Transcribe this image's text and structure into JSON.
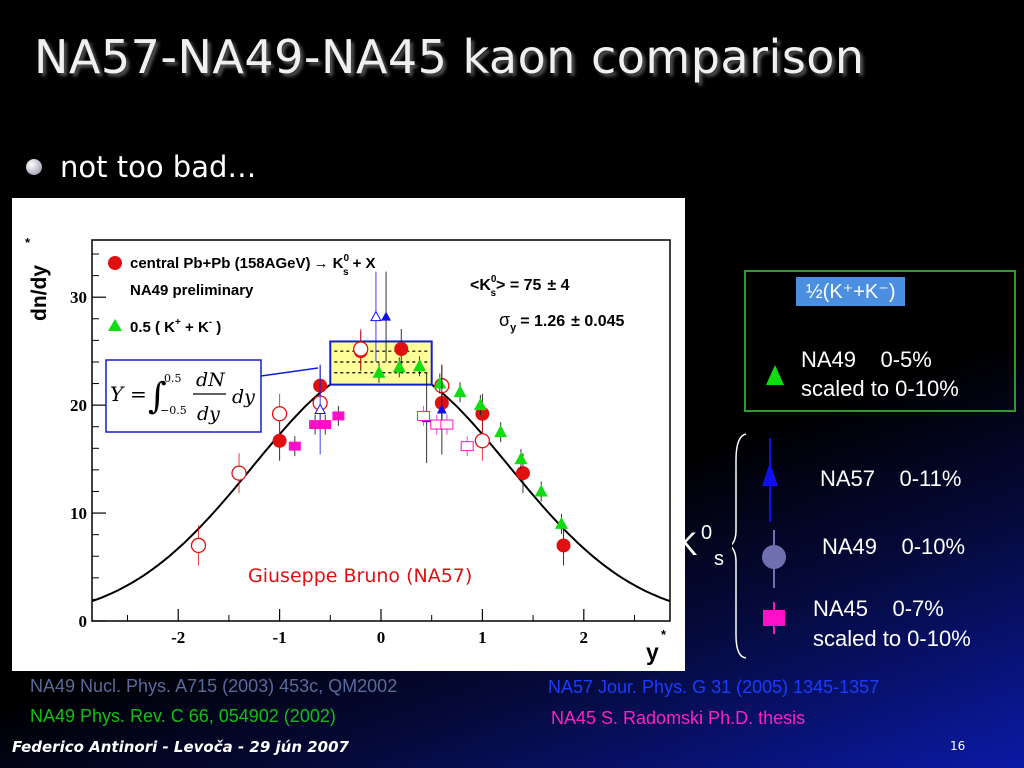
{
  "slide": {
    "title": "NA57-NA49-NA45 kaon comparison",
    "bullet": "not too bad…",
    "footer_left": "Federico Antinori - Levoča - 29 jún 2007",
    "page_number": "16"
  },
  "chart_data": {
    "type": "scatter",
    "xlabel": "y",
    "xlabel_sup": "*",
    "ylabel": "dn/dy",
    "ylabel_sup": "*",
    "xlim": [
      -2.85,
      2.85
    ],
    "ylim": [
      0,
      35.3
    ],
    "xticks": [
      -2,
      -1,
      0,
      1,
      2
    ],
    "yticks": [
      0,
      10,
      20,
      30
    ],
    "inner_legend": {
      "line1": "central Pb+Pb (158AGeV)",
      "line1_reaction": "→ K",
      "line1_super": "0",
      "line1_sub": "s",
      "line1_tail": "+ X",
      "line2": "NA49 preliminary",
      "line3": "0.5 ( K",
      "line3_sup1": "+",
      "line3_mid": " + K",
      "line3_sup2": "-",
      "line3_tail": " )"
    },
    "fit_stats": {
      "mean_label": "<K",
      "mean_sup": "0",
      "mean_sub": "s",
      "mean_tail": "> = 75",
      "mean_pm": "± 4",
      "sigma_label": "σ",
      "sigma_sub": "y",
      "sigma_tail": "= 1.26",
      "sigma_pm": "± 0.045"
    },
    "formula": {
      "lhs": "Y",
      "eq": "=",
      "lower": "−0.5",
      "upper": "0.5",
      "num": "dN",
      "den": "dy",
      "dy": "dy"
    },
    "annotation": "Giuseppe Bruno (NA57)",
    "colors": {
      "na49_red": "#e01010",
      "na49_green": "#10dd10",
      "na57_blue": "#1010ee",
      "na45_magenta": "#ff10c8",
      "na49_gray": "#7070b0",
      "fit_curve": "#000000",
      "box": "#1020cc",
      "box_fill": "#ffff99"
    },
    "fit_curve": {
      "amplitude": 23.7,
      "sigma": 1.26
    },
    "series": [
      {
        "name": "NA49 K0s",
        "marker": "filled-circle",
        "x": [
          -1.0,
          -0.6,
          -0.2,
          0.2,
          0.6,
          1.0,
          1.4,
          1.8
        ],
        "y": [
          16.7,
          21.8,
          25.0,
          25.2,
          20.2,
          19.2,
          13.7,
          7.0
        ]
      },
      {
        "name": "NA49 K0s reflected",
        "marker": "open-circle",
        "x": [
          -1.8,
          -1.4,
          -1.0,
          -0.6,
          -0.2,
          0.6,
          1.0
        ],
        "y": [
          7.0,
          13.7,
          19.2,
          20.2,
          25.2,
          21.8,
          16.7
        ]
      },
      {
        "name": "0.5 (K+ + K-)",
        "marker": "filled-triangle",
        "x": [
          -0.02,
          0.18,
          0.38,
          0.58,
          0.78,
          0.98,
          1.18,
          1.38,
          1.58,
          1.78
        ],
        "y": [
          23.0,
          23.5,
          23.6,
          22.0,
          21.2,
          20.0,
          17.5,
          15.0,
          12.0,
          9.0
        ]
      },
      {
        "name": "NA57 K0s",
        "marker": "filled-triangle-small",
        "x": [
          0.05,
          0.45,
          0.6
        ],
        "y": [
          28.2,
          18.8,
          19.6
        ]
      },
      {
        "name": "NA57 K0s reflected",
        "marker": "open-triangle",
        "x": [
          -0.05,
          -0.6
        ],
        "y": [
          28.2,
          19.6
        ]
      },
      {
        "name": "NA45 K0s",
        "marker": "filled-square",
        "x": [
          -0.85,
          -0.65,
          -0.55,
          -0.42
        ],
        "y": [
          16.2,
          18.2,
          18.2,
          19.0
        ]
      },
      {
        "name": "NA45 K0s reflected",
        "marker": "open-square",
        "x": [
          0.42,
          0.55,
          0.65,
          0.85
        ],
        "y": [
          19.0,
          18.2,
          18.2,
          16.2
        ]
      }
    ]
  },
  "legend_panel": {
    "chip": "½(K⁺+K⁻)",
    "na49_line1": "NA49    0-5%",
    "na49_line2": "scaled to 0-10%",
    "k0_label": "K",
    "k0_sup": "0",
    "k0_sub": "s",
    "na57": "NA57    0-11%",
    "na49b": "NA49    0-10%",
    "na45_line1": "NA45    0-7%",
    "na45_line2": "scaled to 0-10%"
  },
  "sources": {
    "s1": "NA49 Nucl. Phys. A715 (2003) 453c, QM2002",
    "s2": "NA49 Phys. Rev. C 66, 054902 (2002)",
    "s3": "NA57 Jour. Phys. G 31 (2005) 1345-1357",
    "s4": "NA45 S. Radomski Ph.D. thesis",
    "s1_color": "#5a6a9a",
    "s2_color": "#10c010",
    "s3_color": "#1a3cff",
    "s4_color": "#ff20c0"
  }
}
